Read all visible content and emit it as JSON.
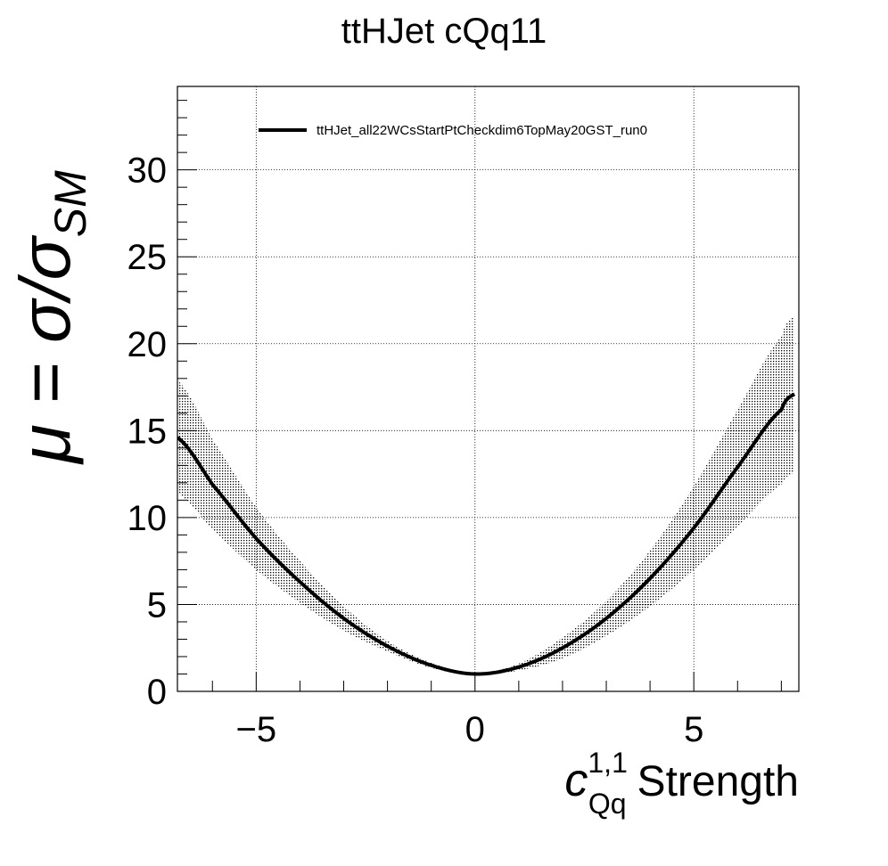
{
  "chart_data": {
    "type": "line",
    "title": "ttHJet cQq11",
    "xlabel": {
      "main": "c",
      "superscript": "1,1",
      "subscript": "Qq",
      "suffix": "Strength"
    },
    "ylabel": {
      "main": "μ = σ/σ",
      "subscript": "SM"
    },
    "xlim": [
      -6.8,
      7.4
    ],
    "ylim": [
      0,
      34.8
    ],
    "x_ticks": [
      -5,
      0,
      5
    ],
    "x_tick_labels": [
      "−5",
      "0",
      "5"
    ],
    "y_ticks": [
      0,
      5,
      10,
      15,
      20,
      25,
      30
    ],
    "y_tick_labels": [
      "0",
      "5",
      "10",
      "15",
      "20",
      "25",
      "30"
    ],
    "grid": true,
    "legend_placement": "top",
    "series": [
      {
        "name": "ttHJet_all22WCsStartPtCheckdim6TopMay20GST_run0",
        "x": [
          -6.8,
          -6,
          -5,
          -4,
          -3,
          -2,
          -1,
          0,
          1,
          2,
          3,
          4,
          5,
          6,
          7,
          7.3
        ],
        "y": [
          14.6,
          11.9,
          8.8,
          6.3,
          4.2,
          2.6,
          1.5,
          1.0,
          1.4,
          2.5,
          4.2,
          6.5,
          9.4,
          12.9,
          16.2,
          17.1
        ],
        "lower": [
          11.4,
          9.3,
          7.0,
          5.1,
          3.5,
          2.3,
          1.35,
          0.95,
          1.2,
          1.9,
          3.2,
          4.9,
          7.0,
          9.5,
          11.9,
          12.6
        ],
        "upper": [
          17.9,
          14.5,
          10.6,
          7.5,
          4.9,
          2.9,
          1.65,
          1.05,
          1.6,
          3.1,
          5.2,
          8.1,
          11.8,
          16.2,
          20.4,
          21.6
        ]
      }
    ]
  }
}
